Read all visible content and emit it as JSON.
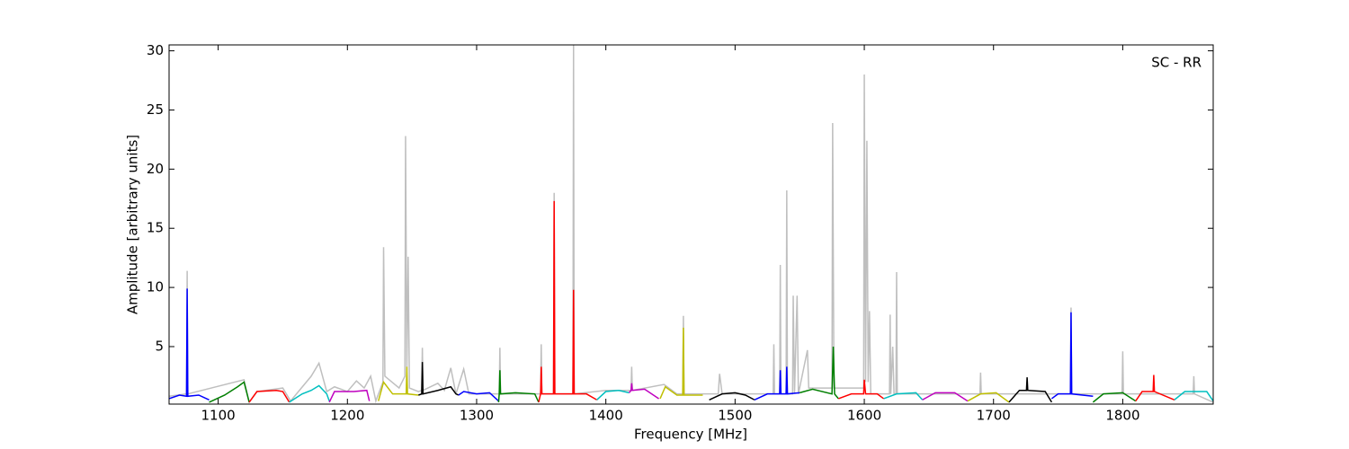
{
  "chart_data": {
    "type": "line",
    "annotation": "SC - RR",
    "xlabel": "Frequency [MHz]",
    "ylabel": "Amplitude [arbitrary units]",
    "xlim": [
      1062,
      1870
    ],
    "ylim": [
      0.14,
      30.5
    ],
    "xticks": [
      1100,
      1200,
      1300,
      1400,
      1500,
      1600,
      1700,
      1800
    ],
    "yticks": [
      5,
      10,
      15,
      20,
      25,
      30
    ],
    "background": {
      "color": "#bfbfbf",
      "x": [
        1062,
        1075.5,
        1076,
        1076.5,
        1120,
        1124,
        1130,
        1150,
        1156,
        1172,
        1178,
        1184,
        1190,
        1200,
        1207,
        1213,
        1218,
        1222,
        1227.5,
        1228,
        1229,
        1240,
        1244.5,
        1245,
        1246,
        1247,
        1248,
        1255,
        1257.5,
        1258,
        1258.5,
        1270,
        1275,
        1280,
        1284,
        1290,
        1294,
        1317.5,
        1318,
        1318.5,
        1349.5,
        1350,
        1350.5,
        1359.5,
        1360,
        1360.5,
        1374.5,
        1375,
        1375.5,
        1400,
        1419.5,
        1420,
        1420.5,
        1445,
        1455,
        1459.5,
        1460,
        1460.5,
        1487,
        1488,
        1490,
        1529.5,
        1530,
        1530.5,
        1534.5,
        1535,
        1535.5,
        1539.5,
        1540,
        1540.5,
        1544.5,
        1545,
        1546,
        1548,
        1549,
        1556,
        1557,
        1575,
        1575.5,
        1576.5,
        1599.5,
        1600,
        1601,
        1602,
        1603,
        1604,
        1605,
        1619.5,
        1620,
        1620.5,
        1622,
        1623,
        1624.5,
        1625,
        1625.5,
        1689.5,
        1690,
        1690.5,
        1759.5,
        1760,
        1760.5,
        1799.5,
        1800,
        1800.5,
        1854.5,
        1855,
        1855.5,
        1870
      ],
      "values": [
        0.8,
        1.0,
        11.4,
        1.0,
        2.2,
        0.3,
        1.2,
        1.5,
        0.4,
        2.5,
        3.6,
        1.2,
        1.6,
        1.2,
        2.1,
        1.5,
        2.5,
        0.4,
        2.0,
        13.4,
        2.5,
        1.5,
        2.5,
        22.8,
        3.0,
        12.6,
        1.5,
        1.2,
        1.3,
        4.9,
        1.3,
        1.9,
        1.3,
        3.2,
        1.0,
        3.1,
        1.0,
        1.0,
        4.9,
        1.0,
        1.0,
        5.2,
        1.0,
        1.0,
        18.0,
        1.0,
        1.0,
        30.5,
        1.0,
        1.3,
        1.3,
        3.3,
        1.3,
        1.8,
        1.0,
        1.0,
        7.6,
        1.0,
        1.0,
        2.7,
        1.0,
        1.0,
        5.2,
        1.0,
        1.0,
        11.9,
        1.0,
        1.0,
        18.2,
        1.0,
        1.0,
        9.3,
        1.0,
        9.3,
        1.0,
        4.7,
        1.5,
        1.5,
        23.9,
        1.5,
        1.5,
        28.0,
        2.0,
        22.4,
        2.0,
        8.0,
        1.0,
        1.0,
        7.7,
        1.0,
        5.0,
        1.0,
        1.0,
        11.3,
        1.0,
        1.0,
        2.8,
        1.0,
        1.0,
        8.3,
        1.0,
        1.0,
        4.6,
        1.0,
        1.0,
        2.5,
        1.0,
        0.3
      ]
    },
    "segments": [
      {
        "color": "#0000ff",
        "x": [
          1062,
          1070,
          1075.5,
          1076,
          1076.5,
          1085,
          1093
        ],
        "values": [
          0.6,
          0.9,
          0.8,
          9.9,
          0.8,
          0.9,
          0.5
        ]
      },
      {
        "color": "#007f00",
        "x": [
          1093,
          1105,
          1115,
          1120,
          1124
        ],
        "values": [
          0.3,
          0.9,
          1.6,
          2.0,
          0.3
        ]
      },
      {
        "color": "#ff0000",
        "x": [
          1124,
          1130,
          1145,
          1150,
          1155
        ],
        "values": [
          0.3,
          1.2,
          1.3,
          1.2,
          0.3
        ]
      },
      {
        "color": "#00bfbf",
        "x": [
          1155,
          1165,
          1172,
          1178,
          1184,
          1186
        ],
        "values": [
          0.3,
          1.0,
          1.3,
          1.7,
          1.0,
          0.4
        ]
      },
      {
        "color": "#bf00bf",
        "x": [
          1186,
          1190,
          1205,
          1215,
          1217
        ],
        "values": [
          0.3,
          1.2,
          1.2,
          1.3,
          0.4
        ]
      },
      {
        "color": "#bfbf00",
        "x": [
          1224,
          1228,
          1235,
          1245.5,
          1246,
          1246.5,
          1255
        ],
        "values": [
          0.4,
          2.0,
          1.0,
          1.0,
          3.3,
          1.0,
          0.9
        ]
      },
      {
        "color": "#000000",
        "x": [
          1255,
          1257.5,
          1258,
          1258.5,
          1270,
          1280,
          1284,
          1286
        ],
        "values": [
          0.9,
          1.0,
          3.7,
          1.0,
          1.3,
          1.6,
          1.0,
          0.9
        ]
      },
      {
        "color": "#0000ff",
        "x": [
          1286,
          1290,
          1300,
          1310,
          1317
        ],
        "values": [
          0.9,
          1.2,
          1.0,
          1.1,
          0.4
        ]
      },
      {
        "color": "#007f00",
        "x": [
          1317,
          1317.5,
          1318,
          1318.5,
          1330,
          1345,
          1348
        ],
        "values": [
          0.3,
          1.0,
          3.0,
          1.0,
          1.1,
          1.0,
          0.3
        ]
      },
      {
        "color": "#ff0000",
        "x": [
          1348,
          1349.5,
          1350,
          1350.5,
          1359.5,
          1360,
          1360.5,
          1374.5,
          1375,
          1375.5,
          1385,
          1393
        ],
        "values": [
          0.3,
          1.0,
          3.3,
          1.0,
          1.0,
          17.3,
          1.0,
          1.0,
          9.8,
          1.0,
          1.0,
          0.5
        ]
      },
      {
        "color": "#00bfbf",
        "x": [
          1393,
          1400,
          1410,
          1418
        ],
        "values": [
          0.5,
          1.2,
          1.3,
          1.1
        ]
      },
      {
        "color": "#bf00bf",
        "x": [
          1418,
          1419.5,
          1420,
          1420.5,
          1430,
          1441
        ],
        "values": [
          1.1,
          1.3,
          1.9,
          1.3,
          1.4,
          0.6
        ]
      },
      {
        "color": "#bfbf00",
        "x": [
          1442,
          1446,
          1455,
          1459.5,
          1460,
          1460.5,
          1475
        ],
        "values": [
          0.6,
          1.6,
          0.9,
          0.9,
          6.6,
          0.9,
          0.9
        ]
      },
      {
        "color": "#000000",
        "x": [
          1480,
          1490,
          1500,
          1508,
          1515
        ],
        "values": [
          0.5,
          1.0,
          1.1,
          0.9,
          0.5
        ]
      },
      {
        "color": "#0000ff",
        "x": [
          1515,
          1525,
          1534.5,
          1535,
          1535.5,
          1539.5,
          1540,
          1540.5,
          1550
        ],
        "values": [
          0.5,
          1.0,
          1.0,
          3.0,
          1.0,
          1.0,
          3.3,
          1.0,
          1.1
        ]
      },
      {
        "color": "#007f00",
        "x": [
          1550,
          1560,
          1575,
          1576,
          1577,
          1580
        ],
        "values": [
          1.1,
          1.4,
          1.0,
          5.0,
          1.0,
          0.6
        ]
      },
      {
        "color": "#ff0000",
        "x": [
          1580,
          1590,
          1599.5,
          1600,
          1601,
          1610,
          1615
        ],
        "values": [
          0.6,
          1.0,
          1.0,
          2.2,
          1.0,
          1.0,
          0.6
        ]
      },
      {
        "color": "#00bfbf",
        "x": [
          1615,
          1625,
          1640,
          1645
        ],
        "values": [
          0.6,
          1.0,
          1.1,
          0.5
        ]
      },
      {
        "color": "#bf00bf",
        "x": [
          1645,
          1655,
          1670,
          1680
        ],
        "values": [
          0.5,
          1.1,
          1.1,
          0.4
        ]
      },
      {
        "color": "#bfbf00",
        "x": [
          1680,
          1690,
          1702,
          1712
        ],
        "values": [
          0.4,
          1.0,
          1.1,
          0.3
        ]
      },
      {
        "color": "#000000",
        "x": [
          1712,
          1720,
          1725.5,
          1726,
          1726.5,
          1740,
          1745
        ],
        "values": [
          0.3,
          1.3,
          1.3,
          2.4,
          1.3,
          1.2,
          0.3
        ]
      },
      {
        "color": "#0000ff",
        "x": [
          1745,
          1750,
          1759.5,
          1760,
          1760.5,
          1777
        ],
        "values": [
          0.6,
          1.0,
          1.0,
          7.9,
          1.0,
          0.8
        ]
      },
      {
        "color": "#007f00",
        "x": [
          1777,
          1785,
          1800,
          1810
        ],
        "values": [
          0.3,
          1.0,
          1.1,
          0.4
        ]
      },
      {
        "color": "#ff0000",
        "x": [
          1810,
          1815,
          1823.5,
          1824,
          1824.5,
          1840
        ],
        "values": [
          0.4,
          1.2,
          1.2,
          2.6,
          1.2,
          0.5
        ]
      },
      {
        "color": "#00bfbf",
        "x": [
          1840,
          1848,
          1865,
          1870
        ],
        "values": [
          0.5,
          1.2,
          1.2,
          0.4
        ]
      }
    ]
  }
}
